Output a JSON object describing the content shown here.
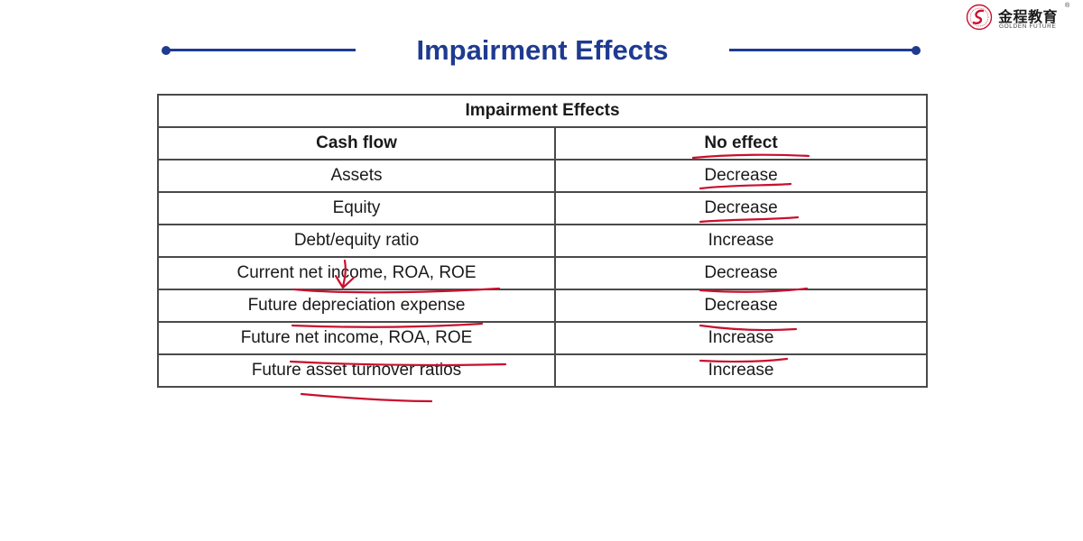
{
  "logo": {
    "name_cn": "金程教育",
    "registered_mark": "®",
    "name_en": "GOLDEN FUTURE",
    "seal_text": "GOLDEN FUTURE EDUCATION"
  },
  "title": "Impairment Effects",
  "table": {
    "caption": "Impairment Effects",
    "headers": [
      "Cash flow",
      "No effect"
    ],
    "rows": [
      [
        "Assets",
        "Decrease"
      ],
      [
        "Equity",
        "Decrease"
      ],
      [
        "Debt/equity ratio",
        "Increase"
      ],
      [
        "Current net income, ROA, ROE",
        "Decrease"
      ],
      [
        "Future depreciation expense",
        "Decrease"
      ],
      [
        "Future net income, ROA, ROE",
        "Increase"
      ],
      [
        "Future asset turnover ratios",
        "Increase"
      ]
    ]
  },
  "colors": {
    "title": "#1f3b8f",
    "annotation": "#c8102e",
    "logo_red": "#c8102e"
  }
}
